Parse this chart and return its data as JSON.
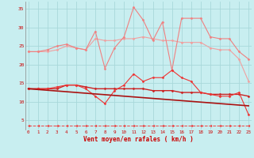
{
  "x": [
    0,
    1,
    2,
    3,
    4,
    5,
    6,
    7,
    8,
    9,
    10,
    11,
    12,
    13,
    14,
    15,
    16,
    17,
    18,
    19,
    20,
    21,
    22,
    23
  ],
  "series": [
    {
      "name": "line1_light_flat",
      "color": "#f0a0a0",
      "linewidth": 0.8,
      "marker": "D",
      "markersize": 1.5,
      "y": [
        23.5,
        23.5,
        23.5,
        24.0,
        25.0,
        24.5,
        24.0,
        27.0,
        26.5,
        26.5,
        27.0,
        27.0,
        27.5,
        27.0,
        26.5,
        26.5,
        26.0,
        26.0,
        26.0,
        24.5,
        24.0,
        24.0,
        21.5,
        15.5
      ]
    },
    {
      "name": "line2_light_jagged",
      "color": "#f08080",
      "linewidth": 0.8,
      "marker": "D",
      "markersize": 1.5,
      "y": [
        23.5,
        23.5,
        24.0,
        25.0,
        25.5,
        24.5,
        24.0,
        29.0,
        19.0,
        24.5,
        27.5,
        35.5,
        32.0,
        26.5,
        31.5,
        18.5,
        32.5,
        32.5,
        32.5,
        27.5,
        27.0,
        27.0,
        23.5,
        21.5
      ]
    },
    {
      "name": "line3_dark_flat",
      "color": "#cc2222",
      "linewidth": 1.0,
      "marker": "D",
      "markersize": 1.5,
      "y": [
        13.5,
        13.5,
        13.5,
        13.5,
        14.5,
        14.5,
        14.0,
        13.5,
        13.5,
        13.5,
        13.5,
        13.5,
        13.5,
        13.0,
        13.0,
        13.0,
        12.5,
        12.5,
        12.5,
        12.0,
        12.0,
        12.0,
        12.0,
        11.5
      ]
    },
    {
      "name": "line4_dark_jagged",
      "color": "#ee3333",
      "linewidth": 0.8,
      "marker": "D",
      "markersize": 1.5,
      "y": [
        13.5,
        13.5,
        13.5,
        14.0,
        14.5,
        14.5,
        13.5,
        11.5,
        9.5,
        13.0,
        14.5,
        17.5,
        15.5,
        16.5,
        16.5,
        18.5,
        16.5,
        15.5,
        12.5,
        12.0,
        11.5,
        11.5,
        12.5,
        6.5
      ]
    },
    {
      "name": "line5_dark_slope",
      "color": "#aa1111",
      "linewidth": 1.2,
      "marker": null,
      "markersize": 0,
      "y": [
        13.5,
        13.3,
        13.1,
        12.9,
        12.7,
        12.5,
        12.3,
        12.1,
        11.9,
        11.7,
        11.5,
        11.3,
        11.1,
        10.9,
        10.7,
        10.5,
        10.3,
        10.1,
        9.9,
        9.7,
        9.5,
        9.3,
        9.1,
        8.9
      ]
    },
    {
      "name": "line6_dashed_bottom",
      "color": "#ee4444",
      "linewidth": 0.7,
      "linestyle": "--",
      "marker": "<",
      "markersize": 2.0,
      "y": [
        3.5,
        3.5,
        3.5,
        3.5,
        3.5,
        3.5,
        3.5,
        3.5,
        3.5,
        3.5,
        3.5,
        3.5,
        3.5,
        3.5,
        3.5,
        3.5,
        3.5,
        3.5,
        3.5,
        3.5,
        3.5,
        3.5,
        3.5,
        3.5
      ]
    }
  ],
  "xlim": [
    -0.3,
    23.3
  ],
  "ylim": [
    2.5,
    37
  ],
  "yticks": [
    5,
    10,
    15,
    20,
    25,
    30,
    35
  ],
  "xticks": [
    0,
    1,
    2,
    3,
    4,
    5,
    6,
    7,
    8,
    9,
    10,
    11,
    12,
    13,
    14,
    15,
    16,
    17,
    18,
    19,
    20,
    21,
    22,
    23
  ],
  "xlabel": "Vent moyen/en rafales ( km/h )",
  "background_color": "#c8eef0",
  "grid_color": "#a8d8da",
  "title": ""
}
